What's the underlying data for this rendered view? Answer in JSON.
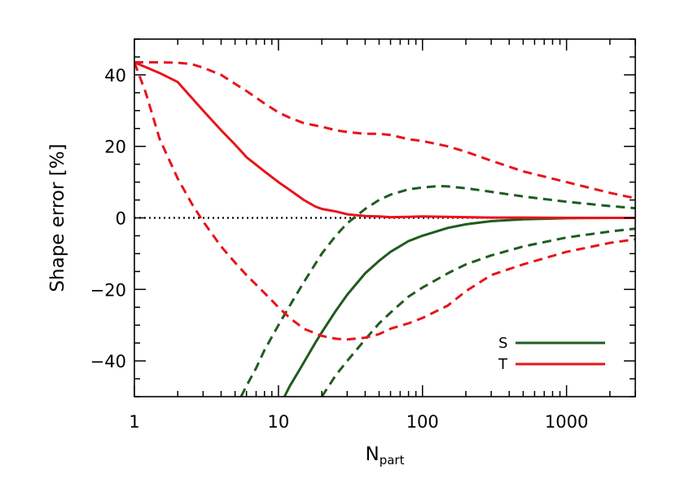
{
  "chart_data": {
    "type": "line",
    "xscale": "log",
    "xlim": [
      1,
      3000
    ],
    "ylim": [
      -50,
      50
    ],
    "xlabel": "N",
    "xlabel_sub": "part",
    "ylabel": "Shape error [%]",
    "x_ticks": [
      1,
      10,
      100,
      1000
    ],
    "x_tick_labels": [
      "1",
      "10",
      "100",
      "1000"
    ],
    "y_ticks": [
      -40,
      -20,
      0,
      20,
      40
    ],
    "y_tick_labels": [
      "−40",
      "−20",
      "0",
      "20",
      "40"
    ],
    "reference_line": {
      "y": 0,
      "style": "dotted",
      "color": "#000000"
    },
    "legend": {
      "position": "bottom-right",
      "entries": [
        {
          "label": "S",
          "color": "#1f5c1f"
        },
        {
          "label": "T",
          "color": "#e8141b"
        }
      ]
    },
    "series": [
      {
        "name": "S",
        "color": "#1f5c1f",
        "style": "solid",
        "x": [
          11,
          12,
          14,
          16,
          18,
          20,
          25,
          30,
          40,
          50,
          60,
          80,
          100,
          150,
          200,
          300,
          500,
          1000,
          2000,
          3000
        ],
        "y": [
          -50,
          -47,
          -42.5,
          -38.5,
          -35,
          -32,
          -26,
          -21.5,
          -15.5,
          -12,
          -9.5,
          -6.5,
          -5,
          -2.8,
          -1.8,
          -0.9,
          -0.4,
          -0.1,
          0,
          0
        ]
      },
      {
        "name": "S upper",
        "color": "#1f5c1f",
        "style": "dashed",
        "x": [
          5.5,
          6,
          7,
          8,
          10,
          12,
          15,
          20,
          25,
          30,
          40,
          50,
          60,
          80,
          100,
          130,
          150,
          200,
          300,
          500,
          1000,
          2000,
          3000
        ],
        "y": [
          -50,
          -47,
          -42,
          -37,
          -30,
          -24.5,
          -18,
          -10,
          -5,
          -1.5,
          2.5,
          5,
          6.5,
          8,
          8.5,
          8.9,
          8.8,
          8.3,
          7.3,
          6,
          4.5,
          3.3,
          2.7
        ]
      },
      {
        "name": "S lower",
        "color": "#1f5c1f",
        "style": "dashed",
        "x": [
          20,
          25,
          30,
          40,
          50,
          60,
          80,
          100,
          150,
          200,
          300,
          500,
          1000,
          2000,
          3000
        ],
        "y": [
          -50,
          -44,
          -40,
          -34,
          -29.5,
          -26.5,
          -22,
          -19.5,
          -15.5,
          -13,
          -10.5,
          -8,
          -5.5,
          -3.8,
          -3
        ]
      },
      {
        "name": "T",
        "color": "#e8141b",
        "style": "solid",
        "x": [
          1,
          1.5,
          2,
          3,
          4,
          5,
          6,
          8,
          10,
          12,
          15,
          18,
          20,
          25,
          30,
          40,
          50,
          60,
          80,
          100,
          150,
          200,
          300,
          500,
          1000,
          2000,
          3000
        ],
        "y": [
          43.5,
          40.5,
          38,
          30,
          24.5,
          20.5,
          17,
          13,
          10,
          7.8,
          5,
          3.2,
          2.5,
          1.8,
          1,
          0.5,
          0.4,
          0.2,
          0.3,
          0.4,
          0.3,
          0.2,
          0.1,
          0.1,
          0,
          0,
          0
        ]
      },
      {
        "name": "T upper",
        "color": "#e8141b",
        "style": "dashed",
        "x": [
          1,
          1.5,
          2,
          2.5,
          3,
          4,
          5,
          6,
          8,
          10,
          12,
          15,
          20,
          25,
          30,
          40,
          50,
          60,
          80,
          100,
          150,
          200,
          300,
          500,
          1000,
          2000,
          3000
        ],
        "y": [
          43.5,
          43.5,
          43.4,
          43,
          42,
          40,
          37.5,
          35.5,
          32,
          29.5,
          28,
          26.5,
          25.5,
          24.5,
          24,
          23.5,
          23.5,
          23.2,
          22,
          21.5,
          20,
          18.5,
          16,
          13,
          10,
          7,
          5.5
        ]
      },
      {
        "name": "T lower",
        "color": "#e8141b",
        "style": "dashed",
        "x": [
          1,
          1.2,
          1.5,
          2,
          2.5,
          3,
          4,
          5,
          6,
          8,
          10,
          12,
          15,
          20,
          25,
          30,
          40,
          50,
          60,
          80,
          100,
          150,
          200,
          300,
          500,
          1000,
          2000,
          3000
        ],
        "y": [
          43.5,
          35,
          22,
          11,
          4,
          -1,
          -8,
          -12.5,
          -16,
          -21,
          -25,
          -28,
          -31,
          -33,
          -33.8,
          -34,
          -33.5,
          -32.5,
          -31,
          -29.5,
          -28,
          -24.5,
          -20.5,
          -16,
          -13,
          -9.5,
          -7,
          -6
        ]
      }
    ]
  }
}
